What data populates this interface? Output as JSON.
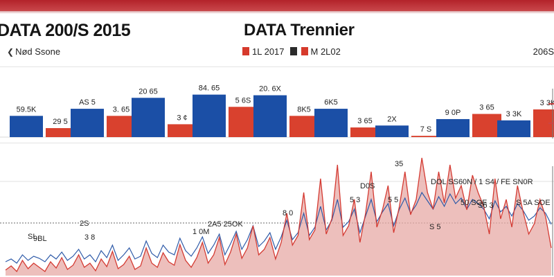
{
  "header": {
    "title_left": "DATA 200/S 2015",
    "title_center": "DATA Trennier",
    "label_left": "Nød Ssone",
    "label_right": "206S",
    "legend": [
      {
        "label": "1L 2017",
        "color": "#d63a2c"
      },
      {
        "label": "",
        "color": "#2b2b2b"
      },
      {
        "label": "M 2L02",
        "color": "#d63a2c"
      }
    ]
  },
  "colors": {
    "blue": "#1b4fa6",
    "red": "#d9412e",
    "line_red": "#d43a32",
    "line_blue": "#2e5aa8",
    "fill_red": "#e7a9a6",
    "top_bar": "#b3232a"
  },
  "chart_data": [
    {
      "type": "bar",
      "title": "",
      "categories": [
        "1",
        "2",
        "3",
        "4",
        "5",
        "6",
        "7",
        "8",
        "9"
      ],
      "series": [
        {
          "values": [
            33,
            44,
            61,
            66,
            65,
            44,
            18,
            28,
            26
          ]
        },
        {
          "values": [
            14,
            33,
            20,
            47,
            33,
            15,
            2,
            36,
            43
          ]
        }
      ],
      "bar_labels": [
        [
          "59.5K",
          "AS 5",
          "20 65",
          "84. 65",
          "20. 6X",
          "6K5",
          "2X",
          "9 0P",
          "3 3K"
        ],
        [
          "29 5",
          "3. 65",
          "3 ¢",
          "5 6S",
          "8K5",
          "3 65",
          "7 S",
          "3 65",
          "3 3K"
        ]
      ],
      "grid": true,
      "legend": "top-center"
    },
    {
      "type": "area",
      "title": "",
      "grid": true,
      "series": [
        {
          "values": [
            8,
            14,
            6,
            22,
            10,
            18,
            12,
            6,
            20,
            11,
            26,
            9,
            15,
            30,
            12,
            18,
            7,
            24,
            13,
            35,
            10,
            16,
            28,
            9,
            14,
            40,
            18,
            12,
            33,
            20,
            15,
            45,
            22,
            12,
            26,
            48,
            18,
            30,
            55,
            16,
            34,
            60,
            25,
            40,
            72,
            30,
            38,
            55,
            24,
            48,
            90,
            44,
            58,
            120,
            52,
            66,
            140,
            60,
            82,
            160,
            58,
            72,
            110,
            48,
            90,
            150,
            70,
            95,
            130,
            62,
            100,
            150,
            88,
            110,
            170,
            120,
            96,
            150,
            105,
            160,
            112,
            130,
            95,
            145,
            120,
            100,
            60,
            140,
            82,
            110,
            70,
            130,
            92,
            60,
            75,
            110,
            85,
            40
          ]
        },
        {
          "values": [
            20,
            24,
            18,
            30,
            22,
            28,
            25,
            20,
            30,
            24,
            34,
            22,
            28,
            38,
            24,
            30,
            20,
            36,
            26,
            44,
            22,
            30,
            40,
            24,
            28,
            50,
            32,
            26,
            44,
            34,
            30,
            54,
            36,
            28,
            40,
            56,
            32,
            44,
            60,
            30,
            46,
            64,
            38,
            52,
            72,
            42,
            50,
            62,
            38,
            56,
            80,
            52,
            62,
            90,
            58,
            70,
            100,
            66,
            80,
            110,
            70,
            78,
            96,
            62,
            86,
            110,
            78,
            92,
            104,
            72,
            96,
            112,
            90,
            102,
            120,
            108,
            96,
            114,
            100,
            118,
            104,
            112,
            96,
            110,
            104,
            96,
            82,
            108,
            92,
            100,
            86,
            104,
            94,
            80,
            86,
            98,
            90,
            74
          ]
        }
      ],
      "annotations": [
        "2S",
        "3 8",
        "9BL",
        "2A5 25OK",
        "8 0",
        "1 0M",
        "D0S",
        "5 3",
        "5 5",
        "35",
        "S 5",
        "S6 3",
        "SL",
        "DOL SS60N / 1 S4 / FE SN0R",
        "50 SOE",
        "S 5A SOE"
      ]
    }
  ]
}
